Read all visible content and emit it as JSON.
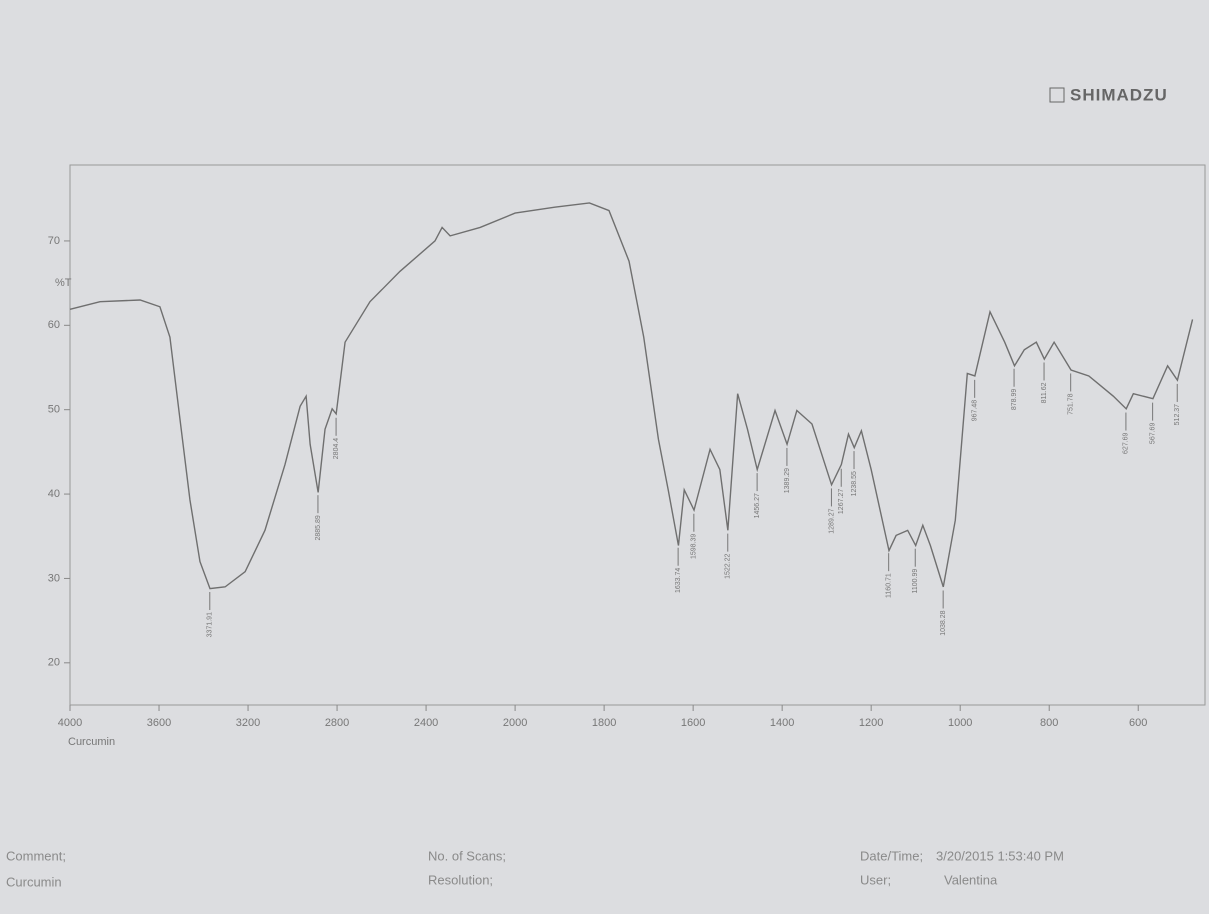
{
  "brand": "SHIMADZU",
  "footer": {
    "comment_label": "Comment;",
    "comment": "Curcumin",
    "scans_label": "No. of Scans;",
    "resolution_label": "Resolution;",
    "datetime_label": "Date/Time;",
    "datetime": "3/20/2015 1:53:40 PM",
    "user_label": "User;",
    "user": "Valentina"
  },
  "chart_data": {
    "type": "line",
    "ylabel": "%T",
    "xlabel": "Curcumin",
    "x": [
      4000,
      3865,
      3685,
      3596,
      3551,
      3506,
      3461,
      3416,
      3371,
      3303,
      3213,
      3124,
      3034,
      2966,
      2939,
      2921,
      2885,
      2854,
      2822,
      2804,
      2764,
      2652,
      2517,
      2360,
      2328,
      2292,
      2157,
      2000,
      1911,
      1833,
      1789,
      1744,
      1711,
      1678,
      1656,
      1633,
      1620,
      1598,
      1562,
      1540,
      1522,
      1500,
      1478,
      1456,
      1416,
      1389,
      1367,
      1333,
      1289,
      1267,
      1251,
      1238,
      1222,
      1200,
      1160,
      1144,
      1118,
      1100,
      1084,
      1067,
      1038,
      1011,
      984,
      967,
      933,
      900,
      878,
      856,
      829,
      811,
      789,
      751,
      711,
      656,
      627,
      611,
      567,
      534,
      512,
      478
    ],
    "series": [
      {
        "color": "#6f6f6f",
        "values": [
          61.9,
          62.8,
          63.0,
          62.2,
          58.6,
          48.9,
          39.3,
          32.0,
          28.8,
          29.0,
          30.8,
          35.7,
          43.5,
          50.4,
          51.6,
          45.9,
          40.2,
          47.7,
          50.1,
          49.5,
          58.0,
          62.8,
          66.4,
          70.0,
          71.6,
          70.6,
          71.6,
          73.3,
          74.0,
          74.5,
          73.6,
          67.6,
          58.6,
          46.5,
          40.5,
          33.9,
          40.5,
          38.1,
          45.3,
          42.9,
          35.7,
          51.9,
          47.7,
          42.9,
          49.9,
          45.9,
          49.9,
          48.3,
          41.1,
          43.5,
          47.1,
          45.5,
          47.5,
          42.9,
          33.3,
          35.1,
          35.7,
          33.9,
          36.3,
          33.9,
          29.0,
          36.9,
          54.3,
          54.0,
          61.6,
          58.0,
          55.2,
          57.1,
          58.0,
          56.0,
          58.0,
          54.7,
          54.0,
          51.6,
          50.1,
          51.9,
          51.3,
          55.2,
          53.5,
          60.7
        ]
      }
    ],
    "peaks": [
      3371.91,
      2885.89,
      2804.4,
      1633.74,
      1598.39,
      1522.22,
      1456.27,
      1389.29,
      1289.27,
      1267.27,
      1238.55,
      1160.71,
      1100.99,
      1038.28,
      967.48,
      878.99,
      811.62,
      751.78,
      627.69,
      567.69,
      512.37
    ],
    "xlim": [
      4000,
      450
    ],
    "x_scale_break": 2000,
    "x_scale_ratio": 2,
    "xticks": [
      4000,
      3600,
      3200,
      2800,
      2400,
      2000,
      1800,
      1600,
      1400,
      1200,
      1000,
      800,
      600
    ],
    "ylim": [
      15,
      79
    ],
    "yticks": [
      20,
      30,
      40,
      50,
      60,
      70
    ]
  }
}
